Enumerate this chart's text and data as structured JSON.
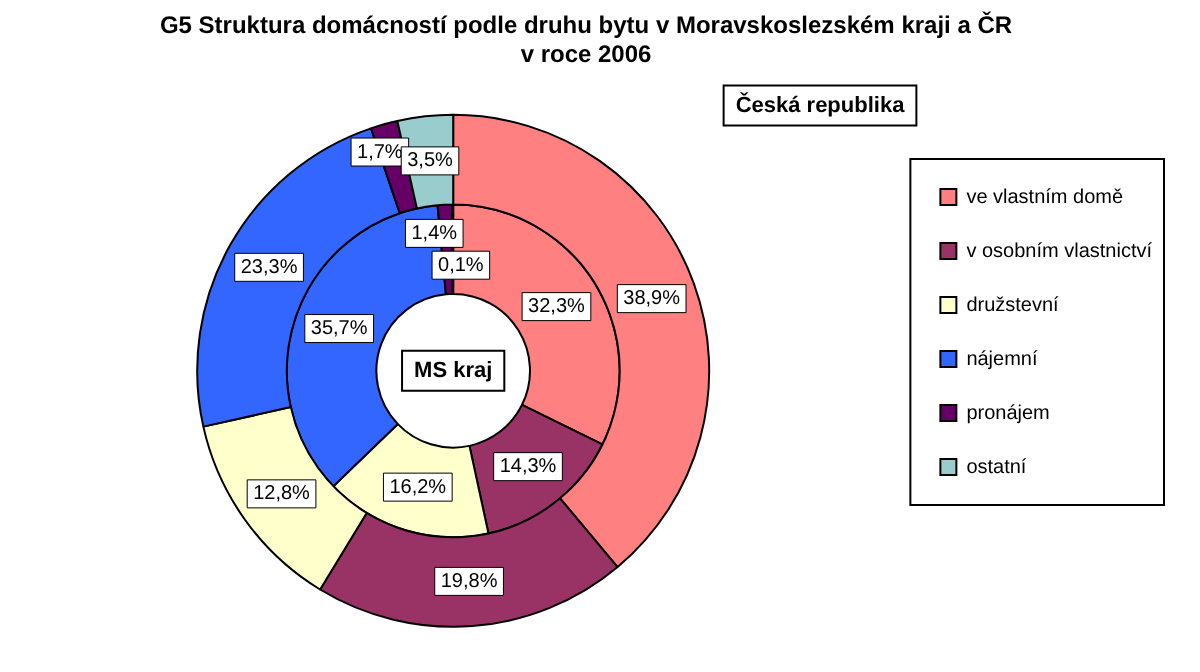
{
  "chart_data": {
    "type": "donut",
    "title": "G5 Struktura domácností podle druhu bytu v Moravskoslezském kraji a ČR\nv roce 2006",
    "categories": [
      "ve vlastním domě",
      "v osobním vlastnictví",
      "družstevní",
      "nájemní",
      "pronájem",
      "ostatní"
    ],
    "colors": [
      "#ff8080",
      "#993366",
      "#ffffcc",
      "#3366ff",
      "#660066",
      "#99cccc"
    ],
    "series": [
      {
        "name": "Česká republika",
        "values": [
          38.9,
          19.8,
          12.8,
          23.3,
          1.7,
          3.5
        ],
        "value_labels": [
          "38,9%",
          "19,8%",
          "12,8%",
          "23,3%",
          "1,7%",
          "3,5%"
        ]
      },
      {
        "name": "MS kraj",
        "values": [
          32.3,
          14.3,
          16.2,
          35.7,
          1.4,
          0.1
        ],
        "value_labels": [
          "32,3%",
          "14,3%",
          "16,2%",
          "35,7%",
          "1,4%",
          "0,1%"
        ]
      }
    ],
    "legend": "right"
  }
}
